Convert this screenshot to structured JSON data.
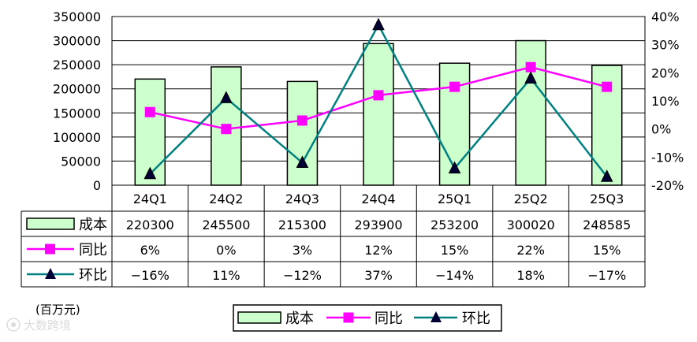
{
  "chart_data": {
    "type": "bar",
    "categories": [
      "24Q1",
      "24Q2",
      "24Q3",
      "24Q4",
      "25Q1",
      "25Q2",
      "25Q3"
    ],
    "series": [
      {
        "name": "成本",
        "type": "bar",
        "axis": "left",
        "values": [
          220300,
          245500,
          215300,
          293900,
          253200,
          300020,
          248585
        ],
        "color": "#ccffcc"
      },
      {
        "name": "同比",
        "type": "line",
        "axis": "right",
        "values": [
          6,
          0,
          3,
          12,
          15,
          22,
          15
        ],
        "labels": [
          "6%",
          "0%",
          "3%",
          "12%",
          "15%",
          "22%",
          "15%"
        ],
        "color": "#ff00ff",
        "marker": "square"
      },
      {
        "name": "环比",
        "type": "line",
        "axis": "right",
        "values": [
          -16,
          11,
          -12,
          37,
          -14,
          18,
          -17
        ],
        "labels": [
          "-16%",
          "11%",
          "-12%",
          "37%",
          "-14%",
          "18%",
          "-17%"
        ],
        "color": "#008080",
        "marker": "triangle"
      }
    ],
    "left_axis": {
      "min": 0,
      "max": 350000,
      "step": 50000,
      "ticks": [
        "0",
        "50000",
        "100000",
        "150000",
        "200000",
        "250000",
        "300000",
        "350000"
      ]
    },
    "right_axis": {
      "min": -20,
      "max": 40,
      "step": 10,
      "ticks": [
        "-20%",
        "-10%",
        "0%",
        "10%",
        "20%",
        "30%",
        "40%"
      ]
    },
    "unit": "(百万元)",
    "legend": "bottom-center",
    "grid": true
  },
  "watermark": "大数跨境"
}
